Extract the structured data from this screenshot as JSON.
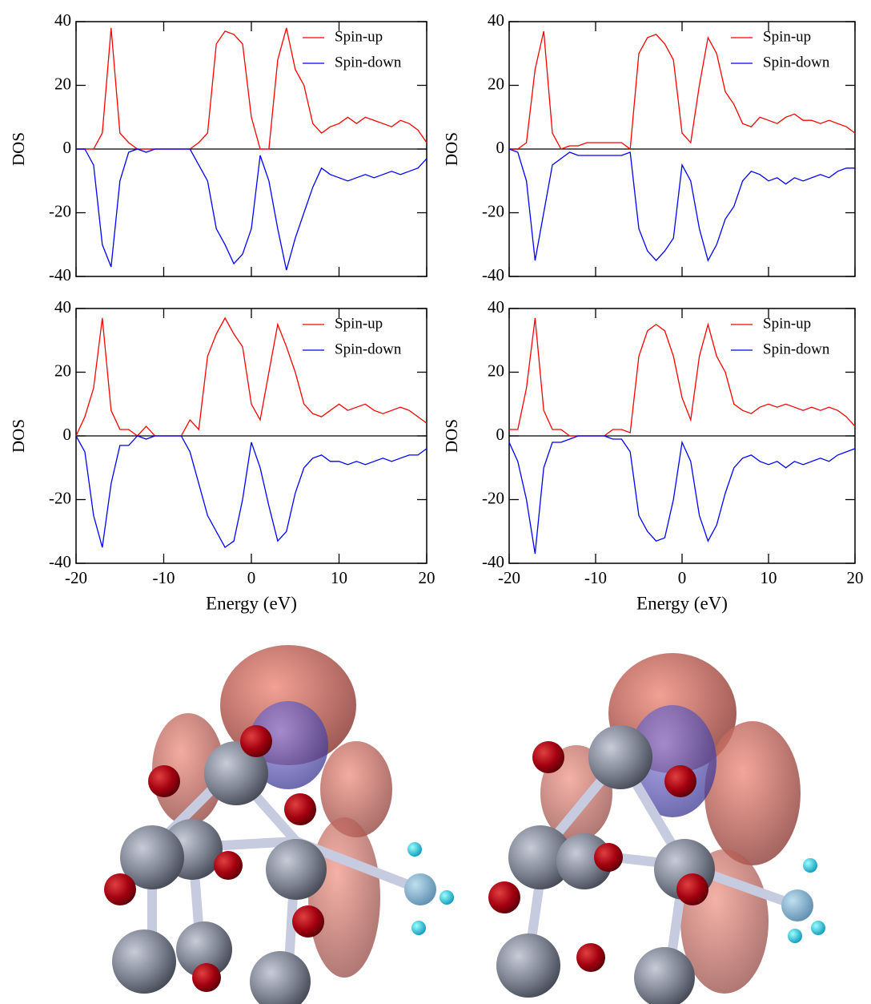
{
  "chart_data": [
    {
      "type": "line",
      "ylabel": "DOS",
      "xtick_labels": false,
      "legend": "upper right",
      "xlim": [
        -20,
        20
      ],
      "ylim": [
        -40,
        40
      ],
      "xticks": [
        -20,
        -10,
        0,
        10,
        20
      ],
      "yticks": [
        -40,
        -20,
        0,
        20,
        40
      ],
      "x": [
        -20,
        -19,
        -18,
        -17,
        -16,
        -15,
        -14,
        -13,
        -12,
        -11,
        -10,
        -9,
        -8,
        -7,
        -6,
        -5,
        -4,
        -3,
        -2,
        -1,
        0,
        1,
        2,
        3,
        4,
        5,
        6,
        7,
        8,
        9,
        10,
        11,
        12,
        13,
        14,
        15,
        16,
        17,
        18,
        19,
        20
      ],
      "series": [
        {
          "name": "Spin-up",
          "color": "#ff0000",
          "values": [
            0,
            0,
            0,
            5,
            38,
            5,
            2,
            0,
            0,
            0,
            0,
            0,
            0,
            0,
            2,
            5,
            33,
            37,
            36,
            33,
            10,
            0,
            0,
            28,
            38,
            25,
            20,
            8,
            5,
            7,
            8,
            10,
            8,
            10,
            9,
            8,
            7,
            9,
            8,
            6,
            2
          ]
        },
        {
          "name": "Spin-down",
          "color": "#0000ff",
          "values": [
            0,
            0,
            -5,
            -30,
            -37,
            -10,
            -1,
            0,
            -1,
            0,
            0,
            0,
            0,
            0,
            -5,
            -10,
            -25,
            -30,
            -36,
            -33,
            -25,
            -2,
            -10,
            -25,
            -38,
            -28,
            -20,
            -12,
            -6,
            -8,
            -9,
            -10,
            -9,
            -8,
            -9,
            -8,
            -7,
            -8,
            -7,
            -6,
            -3
          ]
        }
      ]
    },
    {
      "type": "line",
      "ylabel": "DOS",
      "xtick_labels": false,
      "legend": "upper right",
      "xlim": [
        -20,
        20
      ],
      "ylim": [
        -40,
        40
      ],
      "xticks": [
        -20,
        -10,
        0,
        10,
        20
      ],
      "yticks": [
        -40,
        -20,
        0,
        20,
        40
      ],
      "x": [
        -20,
        -19,
        -18,
        -17,
        -16,
        -15,
        -14,
        -13,
        -12,
        -11,
        -10,
        -9,
        -8,
        -7,
        -6,
        -5,
        -4,
        -3,
        -2,
        -1,
        0,
        1,
        2,
        3,
        4,
        5,
        6,
        7,
        8,
        9,
        10,
        11,
        12,
        13,
        14,
        15,
        16,
        17,
        18,
        19,
        20
      ],
      "series": [
        {
          "name": "Spin-up",
          "color": "#ff0000",
          "values": [
            0,
            0,
            2,
            25,
            37,
            5,
            0,
            1,
            1,
            2,
            2,
            2,
            2,
            2,
            0,
            30,
            35,
            36,
            33,
            28,
            5,
            2,
            20,
            35,
            30,
            18,
            14,
            8,
            7,
            10,
            9,
            8,
            10,
            11,
            9,
            9,
            8,
            9,
            8,
            7,
            5
          ]
        },
        {
          "name": "Spin-down",
          "color": "#0000ff",
          "values": [
            0,
            -1,
            -10,
            -35,
            -20,
            -5,
            -3,
            -1,
            -2,
            -2,
            -2,
            -2,
            -2,
            -2,
            -1,
            -25,
            -32,
            -35,
            -32,
            -28,
            -5,
            -10,
            -25,
            -35,
            -30,
            -22,
            -18,
            -10,
            -7,
            -8,
            -10,
            -9,
            -11,
            -9,
            -10,
            -9,
            -8,
            -9,
            -7,
            -6,
            -6
          ]
        }
      ]
    },
    {
      "type": "line",
      "ylabel": "DOS",
      "xlabel": "Energy (eV)",
      "xtick_labels": true,
      "legend": "upper right",
      "xlim": [
        -20,
        20
      ],
      "ylim": [
        -40,
        40
      ],
      "xticks": [
        -20,
        -10,
        0,
        10,
        20
      ],
      "yticks": [
        -40,
        -20,
        0,
        20,
        40
      ],
      "x": [
        -20,
        -19,
        -18,
        -17,
        -16,
        -15,
        -14,
        -13,
        -12,
        -11,
        -10,
        -9,
        -8,
        -7,
        -6,
        -5,
        -4,
        -3,
        -2,
        -1,
        0,
        1,
        2,
        3,
        4,
        5,
        6,
        7,
        8,
        9,
        10,
        11,
        12,
        13,
        14,
        15,
        16,
        17,
        18,
        19,
        20
      ],
      "series": [
        {
          "name": "Spin-up",
          "color": "#ff0000",
          "values": [
            0,
            6,
            15,
            37,
            8,
            2,
            2,
            0,
            3,
            0,
            0,
            0,
            0,
            5,
            2,
            25,
            32,
            37,
            32,
            28,
            10,
            5,
            20,
            35,
            28,
            20,
            10,
            7,
            6,
            8,
            10,
            8,
            9,
            10,
            8,
            7,
            8,
            9,
            8,
            6,
            4
          ]
        },
        {
          "name": "Spin-down",
          "color": "#0000ff",
          "values": [
            0,
            -5,
            -25,
            -35,
            -15,
            -3,
            -3,
            0,
            -1,
            0,
            0,
            0,
            0,
            -5,
            -15,
            -25,
            -30,
            -35,
            -33,
            -20,
            -2,
            -10,
            -22,
            -33,
            -30,
            -18,
            -10,
            -7,
            -6,
            -8,
            -8,
            -9,
            -8,
            -9,
            -8,
            -7,
            -8,
            -7,
            -6,
            -6,
            -4
          ]
        }
      ]
    },
    {
      "type": "line",
      "ylabel": "DOS",
      "xlabel": "Energy (eV)",
      "xtick_labels": true,
      "legend": "upper right",
      "xlim": [
        -20,
        20
      ],
      "ylim": [
        -40,
        40
      ],
      "xticks": [
        -20,
        -10,
        0,
        10,
        20
      ],
      "yticks": [
        -40,
        -20,
        0,
        20,
        40
      ],
      "x": [
        -20,
        -19,
        -18,
        -17,
        -16,
        -15,
        -14,
        -13,
        -12,
        -11,
        -10,
        -9,
        -8,
        -7,
        -6,
        -5,
        -4,
        -3,
        -2,
        -1,
        0,
        1,
        2,
        3,
        4,
        5,
        6,
        7,
        8,
        9,
        10,
        11,
        12,
        13,
        14,
        15,
        16,
        17,
        18,
        19,
        20
      ],
      "series": [
        {
          "name": "Spin-up",
          "color": "#ff0000",
          "values": [
            2,
            2,
            15,
            37,
            8,
            2,
            2,
            0,
            0,
            0,
            0,
            0,
            2,
            2,
            1,
            25,
            33,
            35,
            33,
            25,
            12,
            5,
            25,
            35,
            25,
            20,
            10,
            8,
            7,
            9,
            10,
            9,
            10,
            9,
            8,
            9,
            8,
            9,
            8,
            6,
            3
          ]
        },
        {
          "name": "Spin-down",
          "color": "#0000ff",
          "values": [
            -2,
            -8,
            -20,
            -37,
            -10,
            -2,
            -2,
            -1,
            0,
            0,
            0,
            0,
            -1,
            -1,
            -5,
            -25,
            -30,
            -33,
            -32,
            -20,
            -2,
            -8,
            -25,
            -33,
            -28,
            -18,
            -10,
            -7,
            -6,
            -8,
            -9,
            -8,
            -10,
            -8,
            -9,
            -8,
            -7,
            -8,
            -6,
            -5,
            -4
          ]
        }
      ]
    }
  ]
}
